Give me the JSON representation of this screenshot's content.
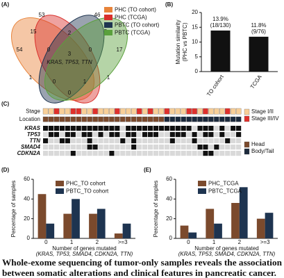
{
  "chart_data": [
    {
      "type": "venn",
      "label": "(A)",
      "sets": [
        {
          "name": "PHC (TO cohort)",
          "color": "#e8833a"
        },
        {
          "name": "PHC (TCGA)",
          "color": "#d9302c"
        },
        {
          "name": "PBTC (TO cohort)",
          "color": "#1e3450"
        },
        {
          "name": "PBTC (TCGA)",
          "color": "#5aa03c"
        }
      ],
      "regions": [
        53,
        46,
        54,
        17,
        15,
        2,
        5,
        0,
        0,
        3,
        1,
        0,
        1,
        1,
        0
      ],
      "annotation": "KRAS, TP53, TTN"
    },
    {
      "type": "bar",
      "label": "(B)",
      "ylabel": [
        "Mutation similarity",
        "(PHC vs PBTC)"
      ],
      "categories": [
        "TO cohort",
        "TCGA"
      ],
      "values": [
        13.9,
        11.8
      ],
      "value_labels": [
        "13.9%",
        "11.8%"
      ],
      "annotations": [
        "(18/130)",
        "(9/76)"
      ],
      "color": "#111111",
      "ylim": [
        0,
        20
      ],
      "yticks": [
        0,
        5,
        10,
        15,
        20
      ]
    },
    {
      "type": "oncoprint",
      "label": "(C)",
      "rows": [
        {
          "name": "Stage",
          "colors": [
            "#f8cf98",
            "#e0312c"
          ],
          "values": [
            0,
            0,
            1,
            0,
            0,
            1,
            1,
            0,
            0,
            1,
            0,
            0,
            0,
            1,
            0,
            0,
            0,
            1,
            0,
            1,
            0,
            0,
            1,
            0,
            0,
            0,
            1,
            1,
            0,
            1,
            0,
            0,
            0,
            1,
            0,
            0
          ]
        },
        {
          "name": "Location",
          "colors": [
            "#7b4a2d",
            "#1c2a3c"
          ],
          "values": [
            0,
            0,
            0,
            0,
            0,
            0,
            0,
            0,
            0,
            0,
            0,
            0,
            0,
            0,
            0,
            0,
            0,
            0,
            0,
            0,
            0,
            0,
            1,
            1,
            1,
            1,
            1,
            1,
            1,
            1,
            1,
            1,
            1,
            1,
            1,
            1
          ]
        },
        {
          "name": "KRAS",
          "colors": [
            "#d9d9d9",
            "#111111"
          ],
          "values": [
            1,
            1,
            1,
            1,
            1,
            1,
            1,
            1,
            1,
            1,
            1,
            1,
            1,
            1,
            0,
            1,
            1,
            1,
            1,
            1,
            1,
            1,
            1,
            1,
            1,
            1,
            1,
            0,
            1,
            1,
            1,
            0,
            1,
            0,
            1,
            1
          ]
        },
        {
          "name": "TP53",
          "colors": [
            "#d9d9d9",
            "#111111"
          ],
          "values": [
            0,
            1,
            1,
            0,
            1,
            1,
            0,
            1,
            1,
            0,
            1,
            0,
            1,
            1,
            0,
            1,
            1,
            0,
            1,
            1,
            1,
            0,
            0,
            1,
            1,
            1,
            0,
            1,
            0,
            1,
            1,
            0,
            1,
            0,
            0,
            1
          ]
        },
        {
          "name": "TTN",
          "colors": [
            "#d9d9d9",
            "#111111"
          ],
          "values": [
            1,
            0,
            0,
            1,
            1,
            0,
            0,
            0,
            1,
            0,
            0,
            0,
            0,
            0,
            1,
            0,
            1,
            0,
            0,
            0,
            0,
            0,
            0,
            1,
            0,
            0,
            0,
            1,
            0,
            0,
            0,
            0,
            0,
            1,
            0,
            0
          ]
        },
        {
          "name": "SMAD4",
          "colors": [
            "#d9d9d9",
            "#111111"
          ],
          "values": [
            0,
            0,
            0,
            0,
            0,
            0,
            0,
            0,
            1,
            1,
            0,
            0,
            0,
            0,
            0,
            0,
            1,
            0,
            0,
            0,
            0,
            0,
            0,
            0,
            0,
            0,
            0,
            0,
            1,
            1,
            0,
            1,
            0,
            0,
            0,
            0
          ]
        },
        {
          "name": "CDKN2A",
          "colors": [
            "#d9d9d9",
            "#111111"
          ],
          "values": [
            0,
            0,
            0,
            0,
            0,
            1,
            0,
            0,
            0,
            0,
            0,
            0,
            1,
            0,
            0,
            0,
            0,
            0,
            0,
            0,
            0,
            0,
            0,
            0,
            0,
            0,
            0,
            0,
            0,
            1,
            1,
            0,
            0,
            0,
            0,
            0
          ]
        }
      ],
      "legend": [
        "Stage I/II",
        "Stage III/IV",
        "Head",
        "Body/Tail"
      ]
    },
    {
      "type": "grouped_bar",
      "label": "(D)",
      "ylabel": "Percentage of samples",
      "xlabel": "Number of genes mutated",
      "xsublabel": "(KRAS, TP53, SMAD4, CDKN2A, TTN)",
      "categories": [
        "0",
        "1",
        "2",
        ">=3"
      ],
      "series": [
        {
          "name": "PHC_TO cohort",
          "color": "#7b4a2d",
          "values": [
            45,
            25,
            25,
            5
          ]
        },
        {
          "name": "PBTC_TO cohort",
          "color": "#1e3450",
          "values": [
            15,
            40,
            30,
            15
          ]
        }
      ],
      "ylim": [
        0,
        60
      ],
      "yticks": [
        0,
        20,
        40,
        60
      ]
    },
    {
      "type": "grouped_bar",
      "label": "(E)",
      "ylabel": "Percentage of samples",
      "xlabel": "Number of genes mutated",
      "xsublabel": "(KRAS, TP53, SMAD4, CDKN2A, TTN)",
      "categories": [
        "0",
        "1",
        "2",
        ">=3"
      ],
      "series": [
        {
          "name": "PHC_TCGA",
          "color": "#7b4a2d",
          "values": [
            13,
            30,
            36,
            20
          ]
        },
        {
          "name": "PBTC_TCGA",
          "color": "#1e3450",
          "values": [
            6,
            15,
            52,
            26
          ]
        }
      ],
      "ylim": [
        0,
        60
      ],
      "yticks": [
        0,
        20,
        40,
        60
      ]
    }
  ],
  "caption": [
    "Whole-exome sequencing of tumor-only samples reveals the association",
    "between somatic alterations and clinical features in pancreatic cancer."
  ]
}
